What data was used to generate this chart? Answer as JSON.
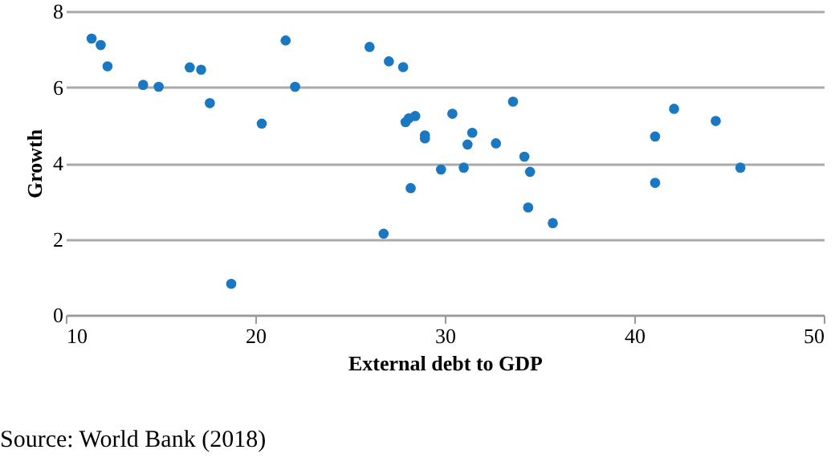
{
  "chart_data": {
    "type": "scatter",
    "xlabel": "External debt to GDP",
    "ylabel": "Growth",
    "x": [
      11.36,
      11.84,
      12.2,
      14.08,
      14.9,
      16.54,
      17.14,
      17.6,
      18.73,
      20.34,
      21.6,
      22.1,
      26.03,
      27.05,
      27.8,
      27.93,
      28.1,
      28.44,
      28.2,
      26.77,
      28.95,
      28.95,
      29.8,
      30.4,
      31.0,
      31.2,
      31.45,
      32.7,
      33.6,
      34.2,
      34.5,
      34.4,
      35.7,
      41.1,
      41.1,
      42.1,
      44.3,
      45.6
    ],
    "series": [
      {
        "color": "#1a78c2",
        "values": [
          7.28,
          7.11,
          6.55,
          6.06,
          6.01,
          6.52,
          6.46,
          5.58,
          0.82,
          5.04,
          7.23,
          6.01,
          7.06,
          6.68,
          6.53,
          5.08,
          5.18,
          5.24,
          3.34,
          2.14,
          4.73,
          4.65,
          3.83,
          5.3,
          3.88,
          4.49,
          4.8,
          4.52,
          5.62,
          4.17,
          3.77,
          2.83,
          2.42,
          4.7,
          3.48,
          5.43,
          5.11,
          3.88
        ]
      }
    ],
    "xlim": [
      10,
      50
    ],
    "xticks": [
      10,
      20,
      30,
      40,
      50
    ],
    "ylim": [
      0,
      8
    ],
    "yticks": [
      0,
      2,
      4,
      6,
      8
    ],
    "grid": "y",
    "marker": "circle",
    "annotations": [
      "Source: World Bank (2018)"
    ]
  }
}
